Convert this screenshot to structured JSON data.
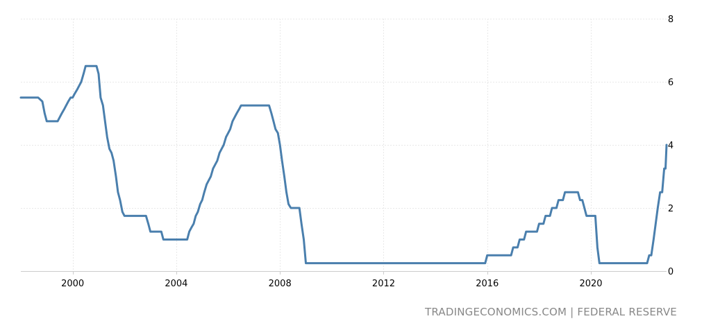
{
  "chart_data": {
    "type": "line",
    "title": "",
    "xlabel": "",
    "ylabel": "",
    "xlim": [
      1998.0,
      2022.92
    ],
    "ylim": [
      0,
      8
    ],
    "x_ticks": [
      2000,
      2004,
      2008,
      2012,
      2016,
      2020
    ],
    "y_ticks": [
      0,
      2,
      4,
      6,
      8
    ],
    "grid": true,
    "line_color": "#4a7fad",
    "series": [
      {
        "name": "",
        "points": [
          [
            1998.0,
            5.5
          ],
          [
            1998.67,
            5.5
          ],
          [
            1998.83,
            5.375
          ],
          [
            1998.92,
            5.0
          ],
          [
            1999.0,
            4.75
          ],
          [
            1999.42,
            4.75
          ],
          [
            1999.5,
            4.875
          ],
          [
            1999.58,
            5.0
          ],
          [
            1999.67,
            5.125
          ],
          [
            1999.75,
            5.25
          ],
          [
            1999.83,
            5.375
          ],
          [
            1999.92,
            5.5
          ],
          [
            2000.0,
            5.5
          ],
          [
            2000.08,
            5.625
          ],
          [
            2000.17,
            5.75
          ],
          [
            2000.25,
            5.875
          ],
          [
            2000.33,
            6.0
          ],
          [
            2000.42,
            6.25
          ],
          [
            2000.5,
            6.5
          ],
          [
            2000.92,
            6.5
          ],
          [
            2001.0,
            6.25
          ],
          [
            2001.08,
            5.5
          ],
          [
            2001.17,
            5.25
          ],
          [
            2001.25,
            4.75
          ],
          [
            2001.33,
            4.25
          ],
          [
            2001.42,
            3.875
          ],
          [
            2001.5,
            3.75
          ],
          [
            2001.58,
            3.5
          ],
          [
            2001.67,
            3.0
          ],
          [
            2001.75,
            2.5
          ],
          [
            2001.83,
            2.25
          ],
          [
            2001.92,
            1.875
          ],
          [
            2002.0,
            1.75
          ],
          [
            2002.83,
            1.75
          ],
          [
            2002.92,
            1.5
          ],
          [
            2003.0,
            1.25
          ],
          [
            2003.42,
            1.25
          ],
          [
            2003.5,
            1.0
          ],
          [
            2004.42,
            1.0
          ],
          [
            2004.5,
            1.25
          ],
          [
            2004.58,
            1.375
          ],
          [
            2004.67,
            1.5
          ],
          [
            2004.75,
            1.75
          ],
          [
            2004.83,
            1.875
          ],
          [
            2004.92,
            2.125
          ],
          [
            2005.0,
            2.25
          ],
          [
            2005.08,
            2.5
          ],
          [
            2005.17,
            2.75
          ],
          [
            2005.25,
            2.875
          ],
          [
            2005.33,
            3.0
          ],
          [
            2005.42,
            3.25
          ],
          [
            2005.5,
            3.375
          ],
          [
            2005.58,
            3.5
          ],
          [
            2005.67,
            3.75
          ],
          [
            2005.75,
            3.875
          ],
          [
            2005.83,
            4.0
          ],
          [
            2005.92,
            4.25
          ],
          [
            2006.0,
            4.375
          ],
          [
            2006.08,
            4.5
          ],
          [
            2006.17,
            4.75
          ],
          [
            2006.25,
            4.875
          ],
          [
            2006.33,
            5.0
          ],
          [
            2006.42,
            5.125
          ],
          [
            2006.5,
            5.25
          ],
          [
            2007.58,
            5.25
          ],
          [
            2007.67,
            5.0
          ],
          [
            2007.75,
            4.75
          ],
          [
            2007.83,
            4.5
          ],
          [
            2007.92,
            4.375
          ],
          [
            2008.0,
            4.0
          ],
          [
            2008.08,
            3.5
          ],
          [
            2008.17,
            3.0
          ],
          [
            2008.25,
            2.5
          ],
          [
            2008.33,
            2.125
          ],
          [
            2008.42,
            2.0
          ],
          [
            2008.75,
            2.0
          ],
          [
            2008.83,
            1.5
          ],
          [
            2008.92,
            1.0
          ],
          [
            2009.0,
            0.25
          ],
          [
            2015.92,
            0.25
          ],
          [
            2016.0,
            0.5
          ],
          [
            2016.92,
            0.5
          ],
          [
            2017.0,
            0.75
          ],
          [
            2017.17,
            0.75
          ],
          [
            2017.25,
            1.0
          ],
          [
            2017.42,
            1.0
          ],
          [
            2017.5,
            1.25
          ],
          [
            2017.92,
            1.25
          ],
          [
            2018.0,
            1.5
          ],
          [
            2018.17,
            1.5
          ],
          [
            2018.25,
            1.75
          ],
          [
            2018.42,
            1.75
          ],
          [
            2018.5,
            2.0
          ],
          [
            2018.67,
            2.0
          ],
          [
            2018.75,
            2.25
          ],
          [
            2018.92,
            2.25
          ],
          [
            2019.0,
            2.5
          ],
          [
            2019.5,
            2.5
          ],
          [
            2019.58,
            2.25
          ],
          [
            2019.67,
            2.25
          ],
          [
            2019.75,
            2.0
          ],
          [
            2019.83,
            1.75
          ],
          [
            2020.17,
            1.75
          ],
          [
            2020.25,
            0.75
          ],
          [
            2020.33,
            0.25
          ],
          [
            2022.17,
            0.25
          ],
          [
            2022.25,
            0.5
          ],
          [
            2022.33,
            0.5
          ],
          [
            2022.42,
            1.0
          ],
          [
            2022.5,
            1.5
          ],
          [
            2022.58,
            2.0
          ],
          [
            2022.67,
            2.5
          ],
          [
            2022.75,
            2.5
          ],
          [
            2022.83,
            3.25
          ],
          [
            2022.88,
            3.25
          ],
          [
            2022.92,
            4.0
          ]
        ]
      }
    ]
  },
  "source": "TRADINGECONOMICS.COM | FEDERAL RESERVE"
}
